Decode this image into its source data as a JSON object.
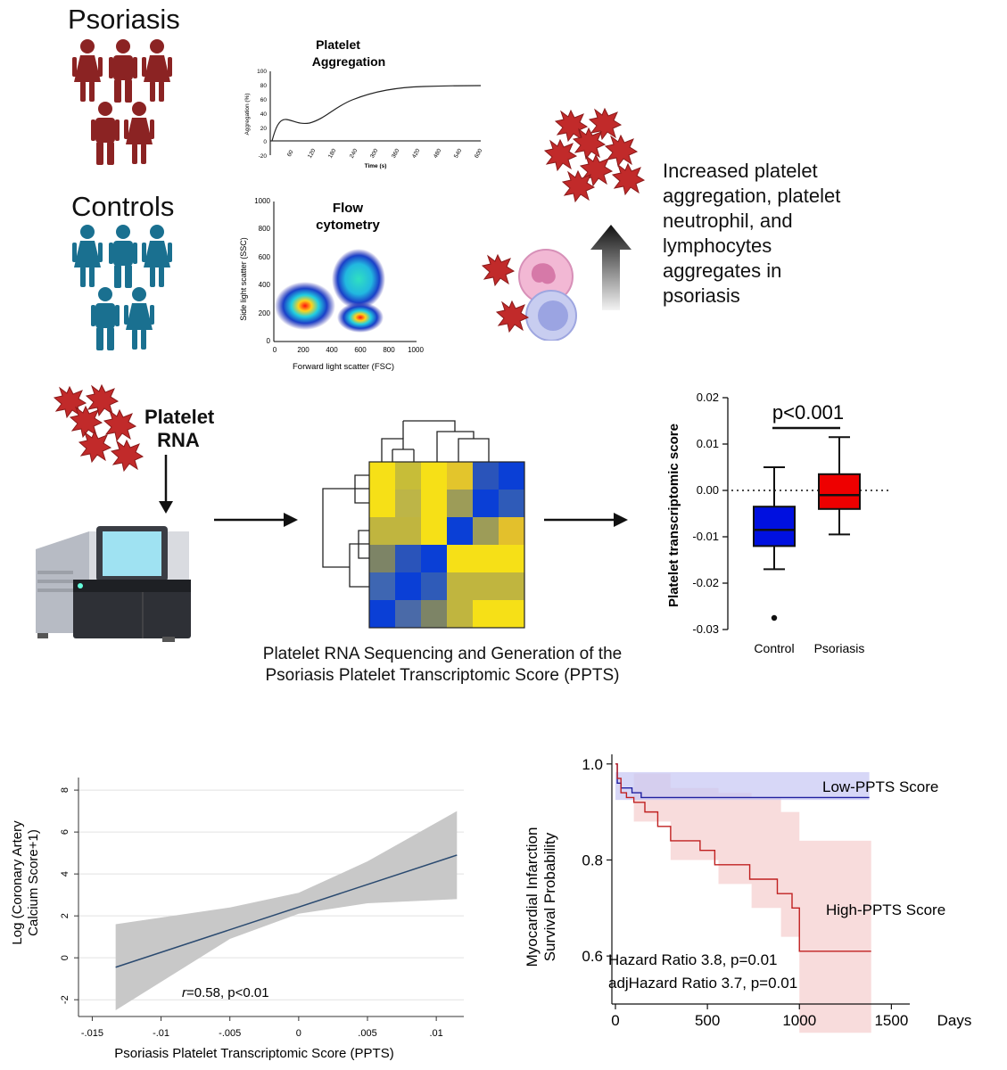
{
  "groups": {
    "psoriasis_label": "Psoriasis",
    "controls_label": "Controls",
    "psoriasis_color": "#8b2323",
    "controls_color": "#1a7090"
  },
  "aggregation_panel": {
    "title_line1": "Platelet",
    "title_line2": "Aggregation",
    "ylabel": "Aggregation (%)",
    "xlabel": "Time (s)",
    "y_ticks": [
      "100",
      "80",
      "60",
      "40",
      "20",
      "0",
      "-20"
    ],
    "x_ticks": [
      "60",
      "120",
      "180",
      "240",
      "300",
      "360",
      "420",
      "480",
      "540",
      "600"
    ]
  },
  "flow_panel": {
    "title_line1": "Flow",
    "title_line2": "cytometry",
    "ylabel": "Side light scatter (SSC)",
    "xlabel": "Forward light scatter (FSC)",
    "y_ticks": [
      "1000",
      "800",
      "600",
      "400",
      "200",
      "0"
    ],
    "x_ticks": [
      "0",
      "200",
      "400",
      "600",
      "800",
      "1000"
    ]
  },
  "aggregation_summary": {
    "line1": "Increased platelet",
    "line2": "aggregation, platelet",
    "line3": "neutrophil, and",
    "line4": "lymphocytes",
    "line5": "aggregates in",
    "line6": "psoriasis"
  },
  "rna": {
    "label_line1": "Platelet",
    "label_line2": "RNA",
    "caption_line1": "Platelet RNA Sequencing and Generation of the",
    "caption_line2": "Psoriasis Platelet Transcriptomic Score (PPTS)"
  },
  "chart_data": [
    {
      "type": "box",
      "ylabel": "Platelet transcriptomic score",
      "categories": [
        "Control",
        "Psoriasis"
      ],
      "y_ticks": [
        "0.02",
        "0.01",
        "0.00",
        "-0.01",
        "-0.02",
        "-0.03"
      ],
      "ylim": [
        -0.03,
        0.02
      ],
      "annotation": "p<0.001",
      "colors": [
        "#0010e0",
        "#ee0000"
      ],
      "boxes": [
        {
          "name": "Control",
          "whisker_low": -0.017,
          "q1": -0.012,
          "median": -0.0085,
          "q3": -0.0035,
          "whisker_high": 0.005,
          "outliers": [
            -0.0275
          ]
        },
        {
          "name": "Psoriasis",
          "whisker_low": -0.0095,
          "q1": -0.004,
          "median": -0.001,
          "q3": 0.0035,
          "whisker_high": 0.0115,
          "outliers": []
        }
      ]
    },
    {
      "type": "line",
      "ylabel_line1": "Log (Coronary Artery",
      "ylabel_line2": "Calcium Score+1)",
      "xlabel": "Psoriasis Platelet Transcriptomic Score (PPTS)",
      "x_ticks": [
        "-.015",
        "-.01",
        "-.005",
        "0",
        ".005",
        ".01"
      ],
      "y_ticks": [
        "8",
        "6",
        "4",
        "2",
        "0",
        "-2"
      ],
      "xlim": [
        -0.016,
        0.012
      ],
      "ylim": [
        -2.8,
        8.6
      ],
      "fit": {
        "x": [
          -0.0133,
          0.0115
        ],
        "y": [
          -0.45,
          4.9
        ]
      },
      "ci_upper": [
        [
          -0.0133,
          1.6
        ],
        [
          -0.005,
          2.4
        ],
        [
          0.0,
          3.1
        ],
        [
          0.005,
          4.6
        ],
        [
          0.0115,
          7.0
        ]
      ],
      "ci_lower": [
        [
          -0.0133,
          -2.5
        ],
        [
          -0.005,
          0.9
        ],
        [
          0.0,
          2.1
        ],
        [
          0.005,
          2.6
        ],
        [
          0.0115,
          2.8
        ]
      ],
      "annotation_r": "r",
      "annotation_rest": "=0.58, p<0.01"
    },
    {
      "type": "survival",
      "ylabel_line1": "Myocardial Infarction",
      "ylabel_line2": "Survival Probability",
      "xlabel": "Days",
      "x_ticks": [
        "0",
        "500",
        "1000",
        "1500"
      ],
      "y_ticks": [
        "1.0",
        "0.8",
        "0.6"
      ],
      "xlim": [
        0,
        1600
      ],
      "ylim": [
        0.5,
        1.02
      ],
      "series": [
        {
          "name": "Low-PPTS Score",
          "color": "#2020a0",
          "band_color": "#c9c9f4",
          "steps": [
            [
              0,
              1.0
            ],
            [
              10,
              0.96
            ],
            [
              30,
              0.95
            ],
            [
              60,
              0.95
            ],
            [
              90,
              0.94
            ],
            [
              120,
              0.94
            ],
            [
              140,
              0.93
            ],
            [
              1380,
              0.93
            ]
          ],
          "band_upper": 0.983,
          "band_lower": 0.925
        },
        {
          "name": "High-PPTS Score",
          "color": "#c02020",
          "band_color": "#f7d6d6",
          "steps": [
            [
              0,
              1.0
            ],
            [
              10,
              0.97
            ],
            [
              30,
              0.94
            ],
            [
              60,
              0.93
            ],
            [
              100,
              0.92
            ],
            [
              160,
              0.9
            ],
            [
              230,
              0.87
            ],
            [
              300,
              0.84
            ],
            [
              460,
              0.82
            ],
            [
              540,
              0.79
            ],
            [
              730,
              0.76
            ],
            [
              880,
              0.73
            ],
            [
              960,
              0.7
            ],
            [
              1000,
              0.61
            ],
            [
              1390,
              0.61
            ]
          ],
          "band_upper": [
            [
              0,
              1.0
            ],
            [
              100,
              0.98
            ],
            [
              300,
              0.95
            ],
            [
              560,
              0.94
            ],
            [
              740,
              0.93
            ],
            [
              900,
              0.9
            ],
            [
              1000,
              0.84
            ],
            [
              1390,
              0.84
            ]
          ],
          "band_lower": [
            [
              0,
              1.0
            ],
            [
              100,
              0.88
            ],
            [
              300,
              0.8
            ],
            [
              560,
              0.75
            ],
            [
              740,
              0.7
            ],
            [
              900,
              0.64
            ],
            [
              1000,
              0.44
            ],
            [
              1390,
              0.44
            ]
          ]
        }
      ],
      "annotation_line1": "Hazard Ratio 3.8, p=0.01",
      "annotation_line2": "adjHazard Ratio 3.7, p=0.01"
    }
  ]
}
